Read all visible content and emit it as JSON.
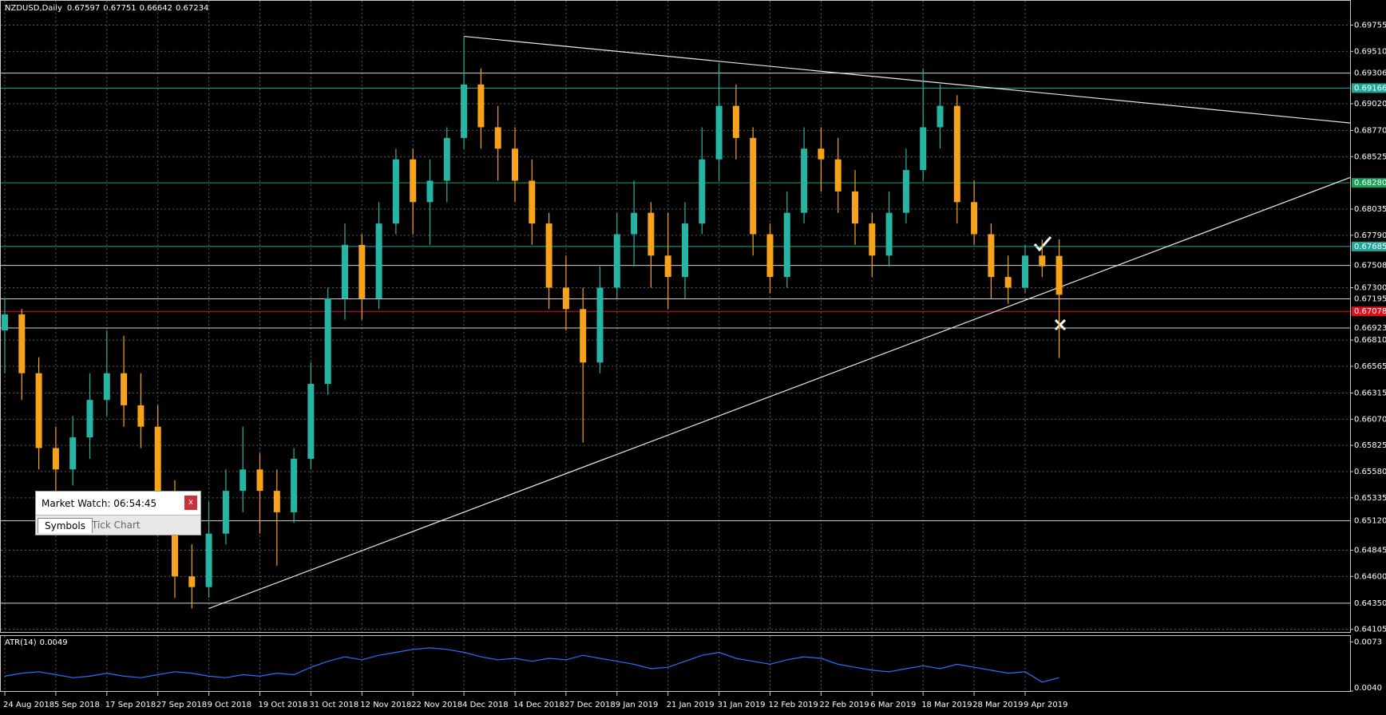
{
  "header": {
    "symbol": "NZDUSD,Daily"
  },
  "chart_data": [
    {
      "type": "candlestick",
      "categories": [
        "24 Aug 2018",
        null,
        null,
        "5 Sep 2018",
        null,
        null,
        "17 Sep 2018",
        null,
        null,
        "27 Sep 2018",
        null,
        null,
        "9 Oct 2018",
        null,
        null,
        "19 Oct 2018",
        null,
        null,
        "31 Oct 2018",
        null,
        null,
        "12 Nov 2018",
        null,
        null,
        "22 Nov 2018",
        null,
        null,
        "4 Dec 2018",
        null,
        null,
        "14 Dec 2018",
        null,
        null,
        "27 Dec 2018",
        null,
        null,
        "9 Jan 2019",
        null,
        null,
        "21 Jan 2019",
        null,
        null,
        "31 Jan 2019",
        null,
        null,
        "12 Feb 2019",
        null,
        null,
        "22 Feb 2019",
        null,
        null,
        "6 Mar 2019",
        null,
        null,
        "18 Mar 2019",
        null,
        null,
        "28 Mar 2019",
        null,
        null,
        "9 Apr 2019",
        null,
        null
      ],
      "open": [
        0.669,
        0.6705,
        0.665,
        0.658,
        0.656,
        0.659,
        0.6625,
        0.665,
        0.662,
        0.66,
        0.654,
        0.646,
        0.645,
        0.65,
        0.654,
        0.656,
        0.654,
        0.652,
        0.657,
        0.664,
        0.672,
        0.677,
        0.672,
        0.679,
        0.685,
        0.681,
        0.683,
        0.687,
        0.692,
        0.688,
        0.686,
        0.683,
        0.679,
        0.673,
        0.671,
        0.666,
        0.673,
        0.678,
        0.68,
        0.676,
        0.674,
        0.679,
        0.685,
        0.69,
        0.687,
        0.678,
        0.674,
        0.68,
        0.686,
        0.685,
        0.682,
        0.679,
        0.676,
        0.68,
        0.684,
        0.688,
        0.69,
        0.681,
        0.678,
        0.674,
        0.673,
        0.676,
        0.67597
      ],
      "high": [
        0.672,
        0.671,
        0.6665,
        0.66,
        0.661,
        0.665,
        0.669,
        0.6685,
        0.665,
        0.662,
        0.655,
        0.649,
        0.653,
        0.656,
        0.66,
        0.6575,
        0.656,
        0.658,
        0.666,
        0.673,
        0.679,
        0.678,
        0.681,
        0.686,
        0.686,
        0.685,
        0.688,
        0.6965,
        0.6935,
        0.69,
        0.688,
        0.685,
        0.68,
        0.676,
        0.673,
        0.675,
        0.68,
        0.683,
        0.681,
        0.68,
        0.681,
        0.688,
        0.694,
        0.692,
        0.688,
        0.679,
        0.682,
        0.688,
        0.688,
        0.687,
        0.684,
        0.68,
        0.682,
        0.686,
        0.6935,
        0.692,
        0.691,
        0.683,
        0.679,
        0.676,
        0.677,
        0.6775,
        0.67751
      ],
      "low": [
        0.665,
        0.6625,
        0.656,
        0.654,
        0.6545,
        0.657,
        0.661,
        0.66,
        0.658,
        0.652,
        0.644,
        0.643,
        0.644,
        0.649,
        0.652,
        0.65,
        0.647,
        0.651,
        0.656,
        0.663,
        0.67,
        0.67,
        0.671,
        0.678,
        0.678,
        0.677,
        0.681,
        0.686,
        0.686,
        0.683,
        0.681,
        0.677,
        0.671,
        0.669,
        0.6585,
        0.665,
        0.672,
        0.675,
        0.673,
        0.671,
        0.672,
        0.678,
        0.683,
        0.685,
        0.676,
        0.6725,
        0.673,
        0.679,
        0.682,
        0.68,
        0.677,
        0.674,
        0.675,
        0.679,
        0.683,
        0.686,
        0.679,
        0.677,
        0.672,
        0.6715,
        0.6725,
        0.674,
        0.66642
      ],
      "close": [
        0.6705,
        0.665,
        0.658,
        0.656,
        0.659,
        0.6625,
        0.665,
        0.662,
        0.66,
        0.654,
        0.646,
        0.645,
        0.65,
        0.654,
        0.656,
        0.654,
        0.652,
        0.657,
        0.664,
        0.672,
        0.677,
        0.672,
        0.679,
        0.685,
        0.681,
        0.683,
        0.687,
        0.692,
        0.688,
        0.686,
        0.683,
        0.679,
        0.673,
        0.671,
        0.666,
        0.673,
        0.678,
        0.68,
        0.676,
        0.674,
        0.679,
        0.685,
        0.69,
        0.687,
        0.678,
        0.674,
        0.68,
        0.686,
        0.685,
        0.682,
        0.679,
        0.676,
        0.68,
        0.684,
        0.688,
        0.69,
        0.681,
        0.678,
        0.674,
        0.673,
        0.676,
        0.675,
        0.67234
      ],
      "up_color": "#26b5a5",
      "down_color": "#f7a21b",
      "ylim": [
        0.6408,
        0.6999
      ],
      "yticks": [
        0.69755,
        {
          "value": 0.6951,
          "label": "0.69510"
        },
        {
          "value": 0.6902,
          "label": "0.69020"
        },
        {
          "value": 0.6877,
          "label": "0.68770"
        },
        0.68525,
        0.68035,
        {
          "value": 0.6779,
          "label": "0.67790"
        },
        {
          "value": 0.673,
          "label": "0.67300"
        },
        {
          "value": 0.6681,
          "label": "0.66810"
        },
        0.66565,
        0.66315,
        {
          "value": 0.6607,
          "label": "0.66070"
        },
        0.65825,
        {
          "value": 0.6558,
          "label": "0.65580"
        },
        0.65335,
        0.64845,
        {
          "value": 0.646,
          "label": "0.64600"
        },
        0.64105
      ],
      "levels": [
        {
          "value": 0.69306,
          "color": "#d0d0d0"
        },
        {
          "value": 0.69166,
          "color": "#1fa89a",
          "box": true
        },
        {
          "value": 0.6828,
          "label": "0.68280",
          "color": "#18a05a",
          "box": true
        },
        {
          "value": 0.67685,
          "color": "#1fa89a",
          "box": true
        },
        {
          "value": 0.67508,
          "color": "#d0d0d0"
        },
        {
          "value": 0.67195,
          "color": "#d0d0d0"
        },
        {
          "value": 0.67078,
          "color": "#e0101a",
          "box": true
        },
        {
          "value": 0.66923,
          "color": "#d0d0d0"
        },
        {
          "value": 0.6512,
          "label": "0.65120",
          "color": "#d0d0d0"
        },
        {
          "value": 0.6435,
          "label": "0.64350",
          "color": "#d0d0d0"
        }
      ],
      "trendlines": [
        {
          "from": "4 Dec 2018",
          "start": 0.6965,
          "end": 0.6884
        },
        {
          "from": "9 Oct 2018",
          "start": 0.643,
          "end": 0.6833
        }
      ],
      "grid": true
    },
    {
      "type": "line",
      "name": "ATR(14)",
      "color": "#2a6fff",
      "values": [
        0.005,
        0.0052,
        0.0053,
        0.0051,
        0.0049,
        0.005,
        0.0052,
        0.005,
        0.0049,
        0.0051,
        0.0053,
        0.0052,
        0.005,
        0.0049,
        0.0051,
        0.005,
        0.0052,
        0.0051,
        0.0056,
        0.006,
        0.0063,
        0.0061,
        0.0064,
        0.0066,
        0.0068,
        0.0069,
        0.0068,
        0.0066,
        0.0063,
        0.0061,
        0.0062,
        0.006,
        0.0062,
        0.0061,
        0.0064,
        0.0062,
        0.006,
        0.0058,
        0.0055,
        0.0056,
        0.006,
        0.0064,
        0.0066,
        0.0062,
        0.006,
        0.0058,
        0.0061,
        0.0063,
        0.0062,
        0.0058,
        0.0056,
        0.0054,
        0.0053,
        0.0055,
        0.0057,
        0.0055,
        0.0058,
        0.0056,
        0.0054,
        0.0052,
        0.0053,
        0.0046,
        0.0049
      ],
      "ylim": [
        0.004,
        0.0077
      ],
      "yticks": [
        0.0073,
        {
          "value": 0.004,
          "label": "0.0040"
        }
      ]
    }
  ],
  "market_watch": {
    "title": "Market Watch: 06:54:45",
    "close": "x",
    "tabs": [
      "Symbols",
      "Tick Chart"
    ]
  }
}
